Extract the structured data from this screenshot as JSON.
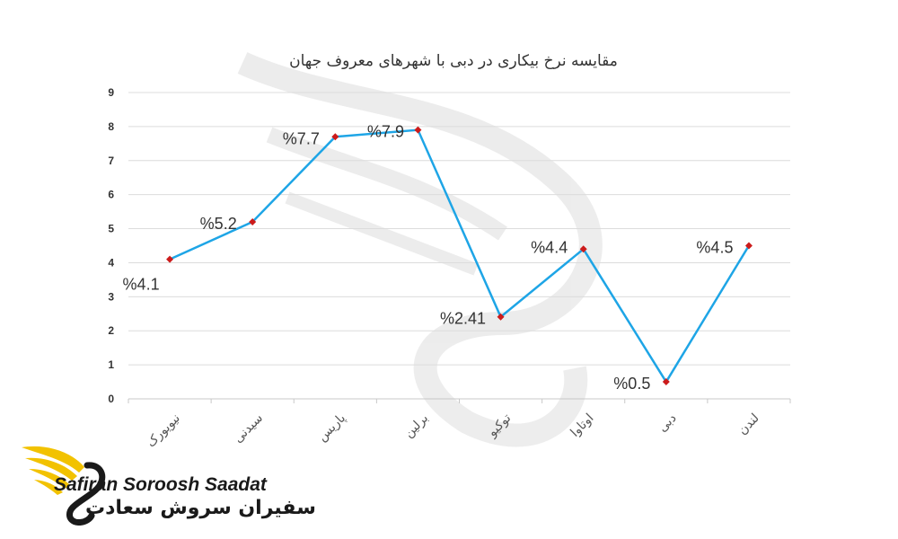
{
  "chart_data": {
    "type": "line",
    "title": "مقایسه نرخ بیکاری در دبی با شهرهای معروف جهان",
    "categories": [
      "نیویورک",
      "سیدنی",
      "پاریس",
      "برلین",
      "توکیو",
      "اوتاوا",
      "دبی",
      "لندن"
    ],
    "series": [
      {
        "values": [
          4.1,
          5.2,
          7.7,
          7.9,
          2.41,
          4.4,
          0.5,
          4.5
        ],
        "data_labels": [
          "%4.1",
          "%5.2",
          "%7.7",
          "%7.9",
          "%2.41",
          "%4.4",
          "%0.5",
          "%4.5"
        ],
        "line_color": "#1ea5e6",
        "marker_color": "#cc1b1b"
      }
    ],
    "yticks": [
      "0",
      "1",
      "2",
      "3",
      "4",
      "5",
      "6",
      "7",
      "8",
      "9"
    ],
    "ylim": [
      0,
      9
    ],
    "grid": true,
    "legend": "none"
  },
  "brand": {
    "name_en": "Safiran Soroosh Saadat",
    "name_fa": "سفیران سروش سعادت",
    "logo_icon": "wing-swan-logo",
    "accent_color": "#f2c200"
  }
}
